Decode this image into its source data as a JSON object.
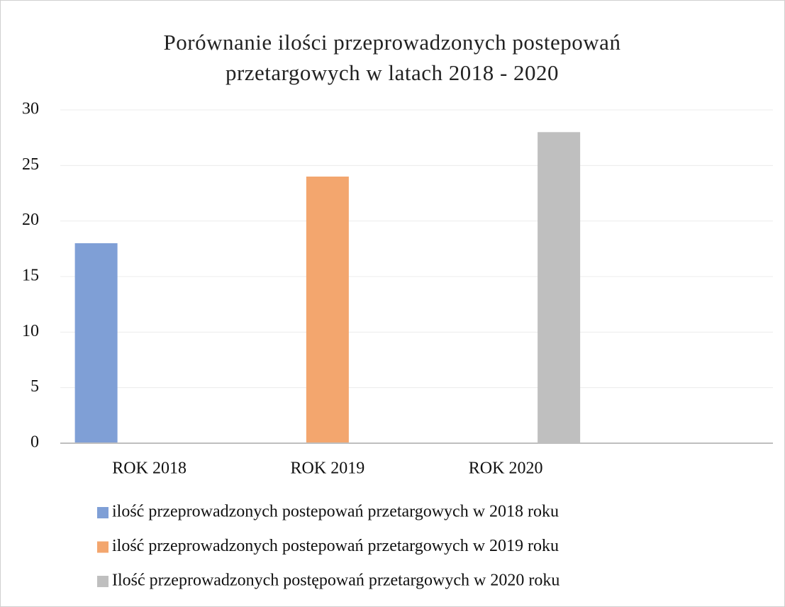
{
  "chart_data": {
    "type": "bar",
    "title": "Porównanie ilości przeprowadzonych postepowań przetargowych w latach 2018 - 2020",
    "categories": [
      "ROK 2018",
      "ROK 2019",
      "ROK 2020",
      null
    ],
    "series": [
      {
        "name": "ilość przeprowadzonych postepowań przetargowych w 2018 roku",
        "color": "#7f9fd6",
        "values": [
          18,
          null,
          null,
          null
        ]
      },
      {
        "name": "ilość przeprowadzonych postepowań przetargowych w 2019 roku",
        "color": "#f3a66e",
        "values": [
          null,
          24,
          null,
          null
        ]
      },
      {
        "name": "Ilość przeprowadzonych postępowań przetargowych w 2020 roku",
        "color": "#bfbfbf",
        "values": [
          null,
          null,
          28,
          null
        ]
      }
    ],
    "ylim": [
      0,
      30
    ],
    "yticks": [
      0,
      5,
      10,
      15,
      20,
      25,
      30
    ],
    "grid": true,
    "legend": "bottom"
  }
}
